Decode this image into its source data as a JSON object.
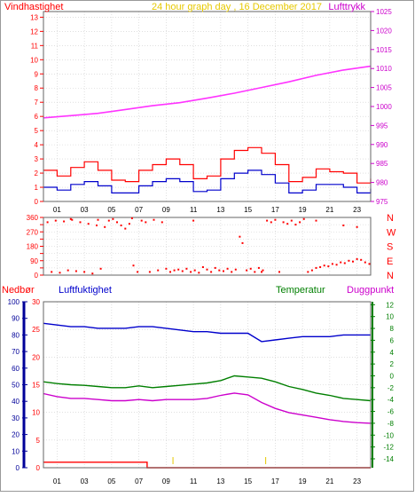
{
  "colors": {
    "red": "#ff0000",
    "magenta": "#cc00cc",
    "blue": "#0000cc",
    "green": "#007f00",
    "bright_magenta": "#ff33ff",
    "yellow": "#e6c800",
    "grid": "#cccccc",
    "dark_blue": "#000099"
  },
  "chart_data": [
    {
      "id": "wind-pressure",
      "type": "line",
      "title": "24 hour graph day , 16 December 2017",
      "left_label": "Vindhastighet",
      "right_label": "Lufttrykk",
      "x_ticks": [
        "01",
        "03",
        "05",
        "07",
        "09",
        "11",
        "13",
        "15",
        "17",
        "19",
        "21",
        "23"
      ],
      "y_left_ticks": [
        0,
        1,
        2,
        3,
        4,
        5,
        6,
        7,
        8,
        9,
        10,
        11,
        12,
        13
      ],
      "y_right_ticks": [
        975,
        980,
        985,
        990,
        995,
        1000,
        1005,
        1010,
        1015,
        1020,
        1025
      ],
      "ylim_left": [
        0,
        13.4
      ],
      "ylim_right": [
        975,
        1025
      ],
      "series": [
        {
          "axis": "right",
          "color": "#ff33ff",
          "x": [
            0,
            2,
            4,
            6,
            8,
            10,
            12,
            14,
            16,
            18,
            20,
            22,
            24
          ],
          "y": [
            997.0,
            997.6,
            998.2,
            999.2,
            1000.2,
            1001.0,
            1002.2,
            1003.5,
            1005.0,
            1006.5,
            1008.2,
            1009.6,
            1010.6
          ]
        },
        {
          "axis": "left",
          "color": "#ff0000",
          "x": [
            0,
            1,
            2,
            3,
            4,
            5,
            6,
            7,
            8,
            9,
            10,
            11,
            12,
            13,
            14,
            15,
            16,
            17,
            18,
            19,
            20,
            21,
            22,
            23,
            24
          ],
          "y": [
            2.2,
            1.8,
            2.4,
            2.8,
            2.2,
            1.5,
            1.4,
            2.2,
            2.6,
            3.0,
            2.6,
            1.6,
            1.8,
            3.0,
            3.6,
            3.8,
            3.4,
            2.6,
            1.4,
            1.7,
            2.3,
            2.1,
            2.0,
            1.3,
            1.6
          ]
        },
        {
          "axis": "left",
          "color": "#0000cc",
          "x": [
            0,
            1,
            2,
            3,
            4,
            5,
            6,
            7,
            8,
            9,
            10,
            11,
            12,
            13,
            14,
            15,
            16,
            17,
            18,
            19,
            20,
            21,
            22,
            23,
            24
          ],
          "y": [
            1.0,
            0.8,
            1.2,
            1.4,
            1.1,
            0.6,
            0.6,
            1.1,
            1.4,
            1.6,
            1.4,
            0.7,
            0.8,
            1.6,
            2.0,
            2.2,
            1.9,
            1.3,
            0.6,
            0.8,
            1.2,
            1.2,
            1.0,
            0.6,
            0.9
          ]
        }
      ]
    },
    {
      "id": "wind-direction",
      "type": "scatter",
      "y_ticks": [
        0,
        45,
        90,
        135,
        180,
        225,
        270,
        315,
        360
      ],
      "right_labels": [
        "N",
        "W",
        "S",
        "E",
        "N"
      ],
      "ylim": [
        0,
        360
      ],
      "color": "#ff0000",
      "points": [
        [
          0.3,
          330
        ],
        [
          0.6,
          20
        ],
        [
          0.9,
          340
        ],
        [
          1.2,
          15
        ],
        [
          1.5,
          335
        ],
        [
          1.8,
          30
        ],
        [
          2.1,
          345
        ],
        [
          2.4,
          25
        ],
        [
          2.7,
          330
        ],
        [
          3.0,
          20
        ],
        [
          3.3,
          320
        ],
        [
          3.6,
          10
        ],
        [
          3.9,
          310
        ],
        [
          4.2,
          40
        ],
        [
          4.5,
          300
        ],
        [
          4.8,
          340
        ],
        [
          5.1,
          350
        ],
        [
          5.4,
          330
        ],
        [
          5.7,
          310
        ],
        [
          6.0,
          290
        ],
        [
          6.3,
          320
        ],
        [
          6.6,
          60
        ],
        [
          6.9,
          20
        ],
        [
          7.2,
          340
        ],
        [
          7.5,
          330
        ],
        [
          7.8,
          20
        ],
        [
          8.1,
          345
        ],
        [
          8.4,
          30
        ],
        [
          8.7,
          330
        ],
        [
          9.0,
          40
        ],
        [
          9.3,
          20
        ],
        [
          9.6,
          30
        ],
        [
          9.9,
          35
        ],
        [
          10.2,
          25
        ],
        [
          10.5,
          40
        ],
        [
          10.8,
          20
        ],
        [
          11.1,
          30
        ],
        [
          11.4,
          15
        ],
        [
          11.7,
          50
        ],
        [
          12.0,
          35
        ],
        [
          12.3,
          20
        ],
        [
          12.6,
          45
        ],
        [
          12.9,
          30
        ],
        [
          13.2,
          25
        ],
        [
          13.5,
          40
        ],
        [
          13.8,
          20
        ],
        [
          14.1,
          35
        ],
        [
          14.4,
          240
        ],
        [
          14.6,
          200
        ],
        [
          14.9,
          30
        ],
        [
          15.2,
          40
        ],
        [
          15.5,
          20
        ],
        [
          15.8,
          45
        ],
        [
          16.1,
          30
        ],
        [
          16.4,
          340
        ],
        [
          16.7,
          330
        ],
        [
          17.0,
          345
        ],
        [
          17.3,
          20
        ],
        [
          17.6,
          330
        ],
        [
          17.9,
          320
        ],
        [
          18.2,
          340
        ],
        [
          18.5,
          315
        ],
        [
          18.8,
          330
        ],
        [
          19.1,
          350
        ],
        [
          19.4,
          20
        ],
        [
          19.7,
          30
        ],
        [
          20.0,
          45
        ],
        [
          20.3,
          50
        ],
        [
          20.6,
          60
        ],
        [
          20.9,
          55
        ],
        [
          21.2,
          70
        ],
        [
          21.5,
          65
        ],
        [
          21.8,
          80
        ],
        [
          22.1,
          75
        ],
        [
          22.4,
          90
        ],
        [
          22.7,
          85
        ],
        [
          23.0,
          100
        ],
        [
          23.3,
          95
        ],
        [
          23.6,
          80
        ],
        [
          23.9,
          70
        ],
        [
          2.0,
          350
        ],
        [
          4.0,
          345
        ],
        [
          6.5,
          355
        ],
        [
          11.0,
          340
        ],
        [
          16.0,
          20
        ],
        [
          20.0,
          340
        ],
        [
          22.0,
          310
        ],
        [
          23.0,
          300
        ]
      ]
    },
    {
      "id": "rain-humidity-temp",
      "type": "line",
      "left_label": "Nedbør",
      "humidity_label": "Luftfuktighet",
      "temp_label": "Temperatur",
      "dew_label": "Duggpunkt",
      "x_ticks": [
        "01",
        "03",
        "05",
        "07",
        "09",
        "11",
        "13",
        "15",
        "17",
        "19",
        "21",
        "23"
      ],
      "y_humidity_ticks": [
        0,
        10,
        20,
        30,
        40,
        50,
        60,
        70,
        80,
        90,
        100
      ],
      "y_rain_ticks": [
        0,
        5,
        10,
        15,
        20,
        25,
        30
      ],
      "y_temp_ticks": [
        -14,
        -12,
        -10,
        -8,
        -6,
        -4,
        -2,
        0,
        2,
        4,
        6,
        8,
        10,
        12
      ],
      "ylim_humidity": [
        0,
        100
      ],
      "ylim_temp": [
        -15.5,
        12.5
      ],
      "series": [
        {
          "name": "Luftfuktighet",
          "axis": "humidity",
          "color": "#0000cc",
          "x": [
            0,
            1,
            2,
            3,
            4,
            5,
            6,
            7,
            8,
            9,
            10,
            11,
            12,
            13,
            14,
            15,
            16,
            17,
            18,
            19,
            20,
            21,
            22,
            23,
            24
          ],
          "y": [
            87,
            86,
            85,
            85,
            84,
            84,
            84,
            85,
            85,
            84,
            83,
            82,
            82,
            81,
            81,
            81,
            76,
            77,
            78,
            79,
            79,
            79,
            80,
            80,
            80
          ]
        },
        {
          "name": "Temperatur",
          "axis": "temp",
          "color": "#007f00",
          "x": [
            0,
            1,
            2,
            3,
            4,
            5,
            6,
            7,
            8,
            9,
            10,
            11,
            12,
            13,
            14,
            15,
            16,
            17,
            18,
            19,
            20,
            21,
            22,
            23,
            24
          ],
          "y": [
            -1.0,
            -1.3,
            -1.5,
            -1.6,
            -1.8,
            -2.0,
            -2.0,
            -1.7,
            -2.0,
            -1.8,
            -1.6,
            -1.4,
            -1.2,
            -0.8,
            0.0,
            -0.2,
            -0.4,
            -1.0,
            -1.8,
            -2.3,
            -2.9,
            -3.3,
            -3.8,
            -4.0,
            -4.2
          ]
        },
        {
          "name": "Duggpunkt",
          "axis": "temp",
          "color": "#cc00cc",
          "x": [
            0,
            1,
            2,
            3,
            4,
            5,
            6,
            7,
            8,
            9,
            10,
            11,
            12,
            13,
            14,
            15,
            16,
            17,
            18,
            19,
            20,
            21,
            22,
            23,
            24
          ],
          "y": [
            -3.0,
            -3.5,
            -3.8,
            -3.8,
            -4.0,
            -4.2,
            -4.2,
            -4.0,
            -4.2,
            -4.0,
            -4.0,
            -4.0,
            -3.8,
            -3.3,
            -2.9,
            -3.2,
            -4.5,
            -5.5,
            -6.2,
            -6.6,
            -7.0,
            -7.4,
            -7.7,
            -7.9,
            -8.0
          ]
        },
        {
          "name": "Nedbør",
          "axis": "rain",
          "color": "#ff0000",
          "x": [
            0,
            7.6,
            7.6,
            24
          ],
          "y": [
            1.0,
            1.0,
            0,
            0
          ]
        }
      ]
    }
  ]
}
